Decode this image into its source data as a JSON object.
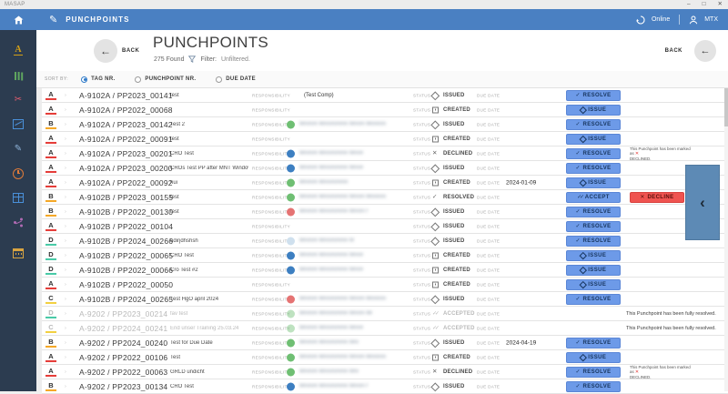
{
  "window": {
    "title": "MASAP"
  },
  "icons": {
    "back_arrow": "←",
    "row_chevron": "›",
    "flyout_chevron": "‹",
    "check": "✓",
    "double_check": "✓✓",
    "cross": "✕",
    "minimize": "–",
    "maximize": "□",
    "close": "✕"
  },
  "appbar": {
    "title": "PUNCHPOINTS",
    "online_label": "Online",
    "user_label": "MTX"
  },
  "header": {
    "back_label": "BACK",
    "title": "PUNCHPOINTS",
    "count": "275 Found",
    "filter_label": "Filter:",
    "filter_value": "Unfiltered.",
    "back_right_label": "BACK"
  },
  "sortbar": {
    "label": "SORT BY:",
    "options": [
      {
        "label": "TAG NR.",
        "selected": true
      },
      {
        "label": "PUNCHPOINT NR.",
        "selected": false
      },
      {
        "label": "DUE DATE",
        "selected": false
      }
    ]
  },
  "sidebar": {
    "items": [
      {
        "name": "milestones-icon",
        "glyph": "letter",
        "text": "A",
        "color": "#d4a017"
      },
      {
        "name": "library-icon",
        "glyph": "books",
        "color": "#5fa55f"
      },
      {
        "name": "tools-icon",
        "glyph": "scissors",
        "text": "✂",
        "color": "#e05c6e"
      },
      {
        "name": "drawings-icon",
        "glyph": "frame",
        "color": "#4a90d9"
      },
      {
        "name": "punchpoints-icon",
        "glyph": "pencil",
        "text": "✎",
        "color": "#8fb3d9"
      },
      {
        "name": "history-icon",
        "glyph": "clock",
        "color": "#e07b39"
      },
      {
        "name": "matrix-icon",
        "glyph": "grid",
        "color": "#4a90d9"
      },
      {
        "name": "share-icon",
        "glyph": "nodes",
        "color": "#b06ab3"
      },
      {
        "name": "calendar-icon",
        "glyph": "calendar",
        "color": "#d9a441",
        "gap": true
      }
    ]
  },
  "table": {
    "labels": {
      "responsibility": "RESPONSIBILITY",
      "status": "STATUS",
      "due_date": "DUE DATE"
    },
    "buttons": {
      "resolve": "RESOLVE",
      "issue": "ISSUE",
      "accept": "ACCEPT",
      "decline": "DECLINE"
    },
    "notes": {
      "declined_line1": "This Punchpoint has been marked as",
      "declined_line2": "DECLINED.",
      "resolved": "This Punchpoint has been fully resolved."
    },
    "grade_colors": {
      "A": "#e53935",
      "B": "#f5a623",
      "C": "#f2cf3d",
      "D": "#45c9a5"
    },
    "avatar_colors": {
      "green": "#6fbf73",
      "blue": "#3d7fc1",
      "red": "#e57373",
      "faded": "#cfe0ee"
    },
    "rows": [
      {
        "grade": "A",
        "tag": "A-9102A / PP2023_00141",
        "desc": "test",
        "resp_text": "(Test Comp)",
        "avatar": null,
        "blur": 0,
        "status": "ISSUED",
        "icon": "diamond",
        "due": "",
        "action": "resolve",
        "note": null,
        "muted": false
      },
      {
        "grade": "A",
        "tag": "A-9102A / PP2022_00068",
        "desc": "",
        "resp_text": null,
        "avatar": null,
        "blur": 0,
        "status": "CREATED",
        "icon": "square",
        "due": "",
        "action": "issue",
        "note": null,
        "muted": false
      },
      {
        "grade": "B",
        "tag": "A-9102A / PP2023_00142",
        "desc": "Test 2",
        "resp_text": null,
        "avatar": "green",
        "blur": 100,
        "status": "ISSUED",
        "icon": "diamond",
        "due": "",
        "action": "resolve",
        "note": null,
        "muted": false
      },
      {
        "grade": "A",
        "tag": "A-9102A / PP2022_00091",
        "desc": "test",
        "resp_text": null,
        "avatar": null,
        "blur": 0,
        "status": "CREATED",
        "icon": "square",
        "due": "",
        "action": "issue",
        "note": null,
        "muted": false
      },
      {
        "grade": "A",
        "tag": "A-9102A / PP2023_00201",
        "desc": "CRO Test",
        "resp_text": null,
        "avatar": "blue",
        "blur": 70,
        "status": "DECLINED",
        "icon": "x",
        "due": "",
        "action": "resolve",
        "note": "declined",
        "muted": false
      },
      {
        "grade": "A",
        "tag": "A-9102A / PP2023_00200",
        "desc": "CROs Test PP after MNT Window",
        "resp_text": null,
        "avatar": "blue",
        "blur": 70,
        "status": "ISSUED",
        "icon": "diamond",
        "due": "",
        "action": "resolve",
        "note": null,
        "muted": false
      },
      {
        "grade": "A",
        "tag": "A-9102A / PP2022_00092",
        "desc": "hui",
        "resp_text": null,
        "avatar": "green",
        "blur": 55,
        "status": "CREATED",
        "icon": "square",
        "due": "2024-01-09",
        "action": "issue",
        "note": null,
        "muted": false
      },
      {
        "grade": "B",
        "tag": "A-9102B / PP2023_00155",
        "desc": "test",
        "resp_text": null,
        "avatar": "green",
        "blur": 100,
        "status": "RESOLVED",
        "icon": "check",
        "due": "",
        "action": "accept_decline",
        "note": null,
        "muted": false
      },
      {
        "grade": "B",
        "tag": "A-9102B / PP2022_00130",
        "desc": "test",
        "resp_text": null,
        "avatar": "red",
        "blur": 75,
        "status": "ISSUED",
        "icon": "diamond",
        "due": "",
        "action": "resolve",
        "note": null,
        "muted": false
      },
      {
        "grade": "A",
        "tag": "A-9102B / PP2022_00104",
        "desc": "",
        "resp_text": null,
        "avatar": null,
        "blur": 0,
        "status": "ISSUED",
        "icon": "diamond",
        "due": "",
        "action": "resolve",
        "note": null,
        "muted": false
      },
      {
        "grade": "D",
        "tag": "A-9102B / PP2024_00266",
        "desc": "udirjdhshsh",
        "resp_text": null,
        "avatar": "faded",
        "blur": 60,
        "status": "ISSUED",
        "icon": "diamond",
        "due": "",
        "action": "resolve",
        "note": null,
        "muted": false
      },
      {
        "grade": "D",
        "tag": "A-9102B / PP2022_00065",
        "desc": "CRO Test",
        "resp_text": null,
        "avatar": "blue",
        "blur": 70,
        "status": "CREATED",
        "icon": "square",
        "due": "",
        "action": "issue",
        "note": null,
        "muted": false
      },
      {
        "grade": "D",
        "tag": "A-9102B / PP2022_00066",
        "desc": "Cro Test #2",
        "resp_text": null,
        "avatar": "blue",
        "blur": 70,
        "status": "CREATED",
        "icon": "square",
        "due": "",
        "action": "issue",
        "note": null,
        "muted": false
      },
      {
        "grade": "A",
        "tag": "A-9102B / PP2022_00050",
        "desc": "",
        "resp_text": null,
        "avatar": null,
        "blur": 0,
        "status": "CREATED",
        "icon": "square",
        "due": "",
        "action": "issue",
        "note": null,
        "muted": false
      },
      {
        "grade": "C",
        "tag": "A-9102B / PP2024_00265",
        "desc": "Test HgO april 2024",
        "resp_text": null,
        "avatar": "red",
        "blur": 110,
        "status": "ISSUED",
        "icon": "diamond",
        "due": "",
        "action": "resolve",
        "note": null,
        "muted": false
      },
      {
        "grade": "D",
        "tag": "A-9202 / PP2023_00214",
        "desc": "fav test",
        "resp_text": null,
        "avatar": "green",
        "blur": 80,
        "status": "ACCEPTED",
        "icon": "dcheck",
        "due": "",
        "action": "none",
        "note": "resolved",
        "muted": true
      },
      {
        "grade": "C",
        "tag": "A-9202 / PP2024_00241",
        "desc": "End unser Training 25.03.24",
        "resp_text": null,
        "avatar": "green",
        "blur": 70,
        "status": "ACCEPTED",
        "icon": "dcheck",
        "due": "",
        "action": "none",
        "note": "resolved",
        "muted": true
      },
      {
        "grade": "B",
        "tag": "A-9202 / PP2024_00240",
        "desc": "Test for Due Date",
        "resp_text": null,
        "avatar": "green",
        "blur": 65,
        "status": "ISSUED",
        "icon": "diamond",
        "due": "2024-04-19",
        "action": "resolve",
        "note": null,
        "muted": false
      },
      {
        "grade": "A",
        "tag": "A-9202 / PP2022_00106",
        "desc": "Test",
        "resp_text": null,
        "avatar": "green",
        "blur": 95,
        "status": "CREATED",
        "icon": "square",
        "due": "",
        "action": "issue",
        "note": null,
        "muted": false
      },
      {
        "grade": "A",
        "tag": "A-9202 / PP2022_00063",
        "desc": "GRLD undicht",
        "resp_text": null,
        "avatar": "green",
        "blur": 65,
        "status": "DECLINED",
        "icon": "x",
        "due": "",
        "action": "resolve",
        "note": "declined",
        "muted": false
      },
      {
        "grade": "B",
        "tag": "A-9202 / PP2023_00134",
        "desc": "CRO Test",
        "resp_text": null,
        "avatar": "blue",
        "blur": 75,
        "status": "ISSUED",
        "icon": "diamond",
        "due": "",
        "action": "resolve",
        "note": null,
        "muted": false
      }
    ]
  }
}
